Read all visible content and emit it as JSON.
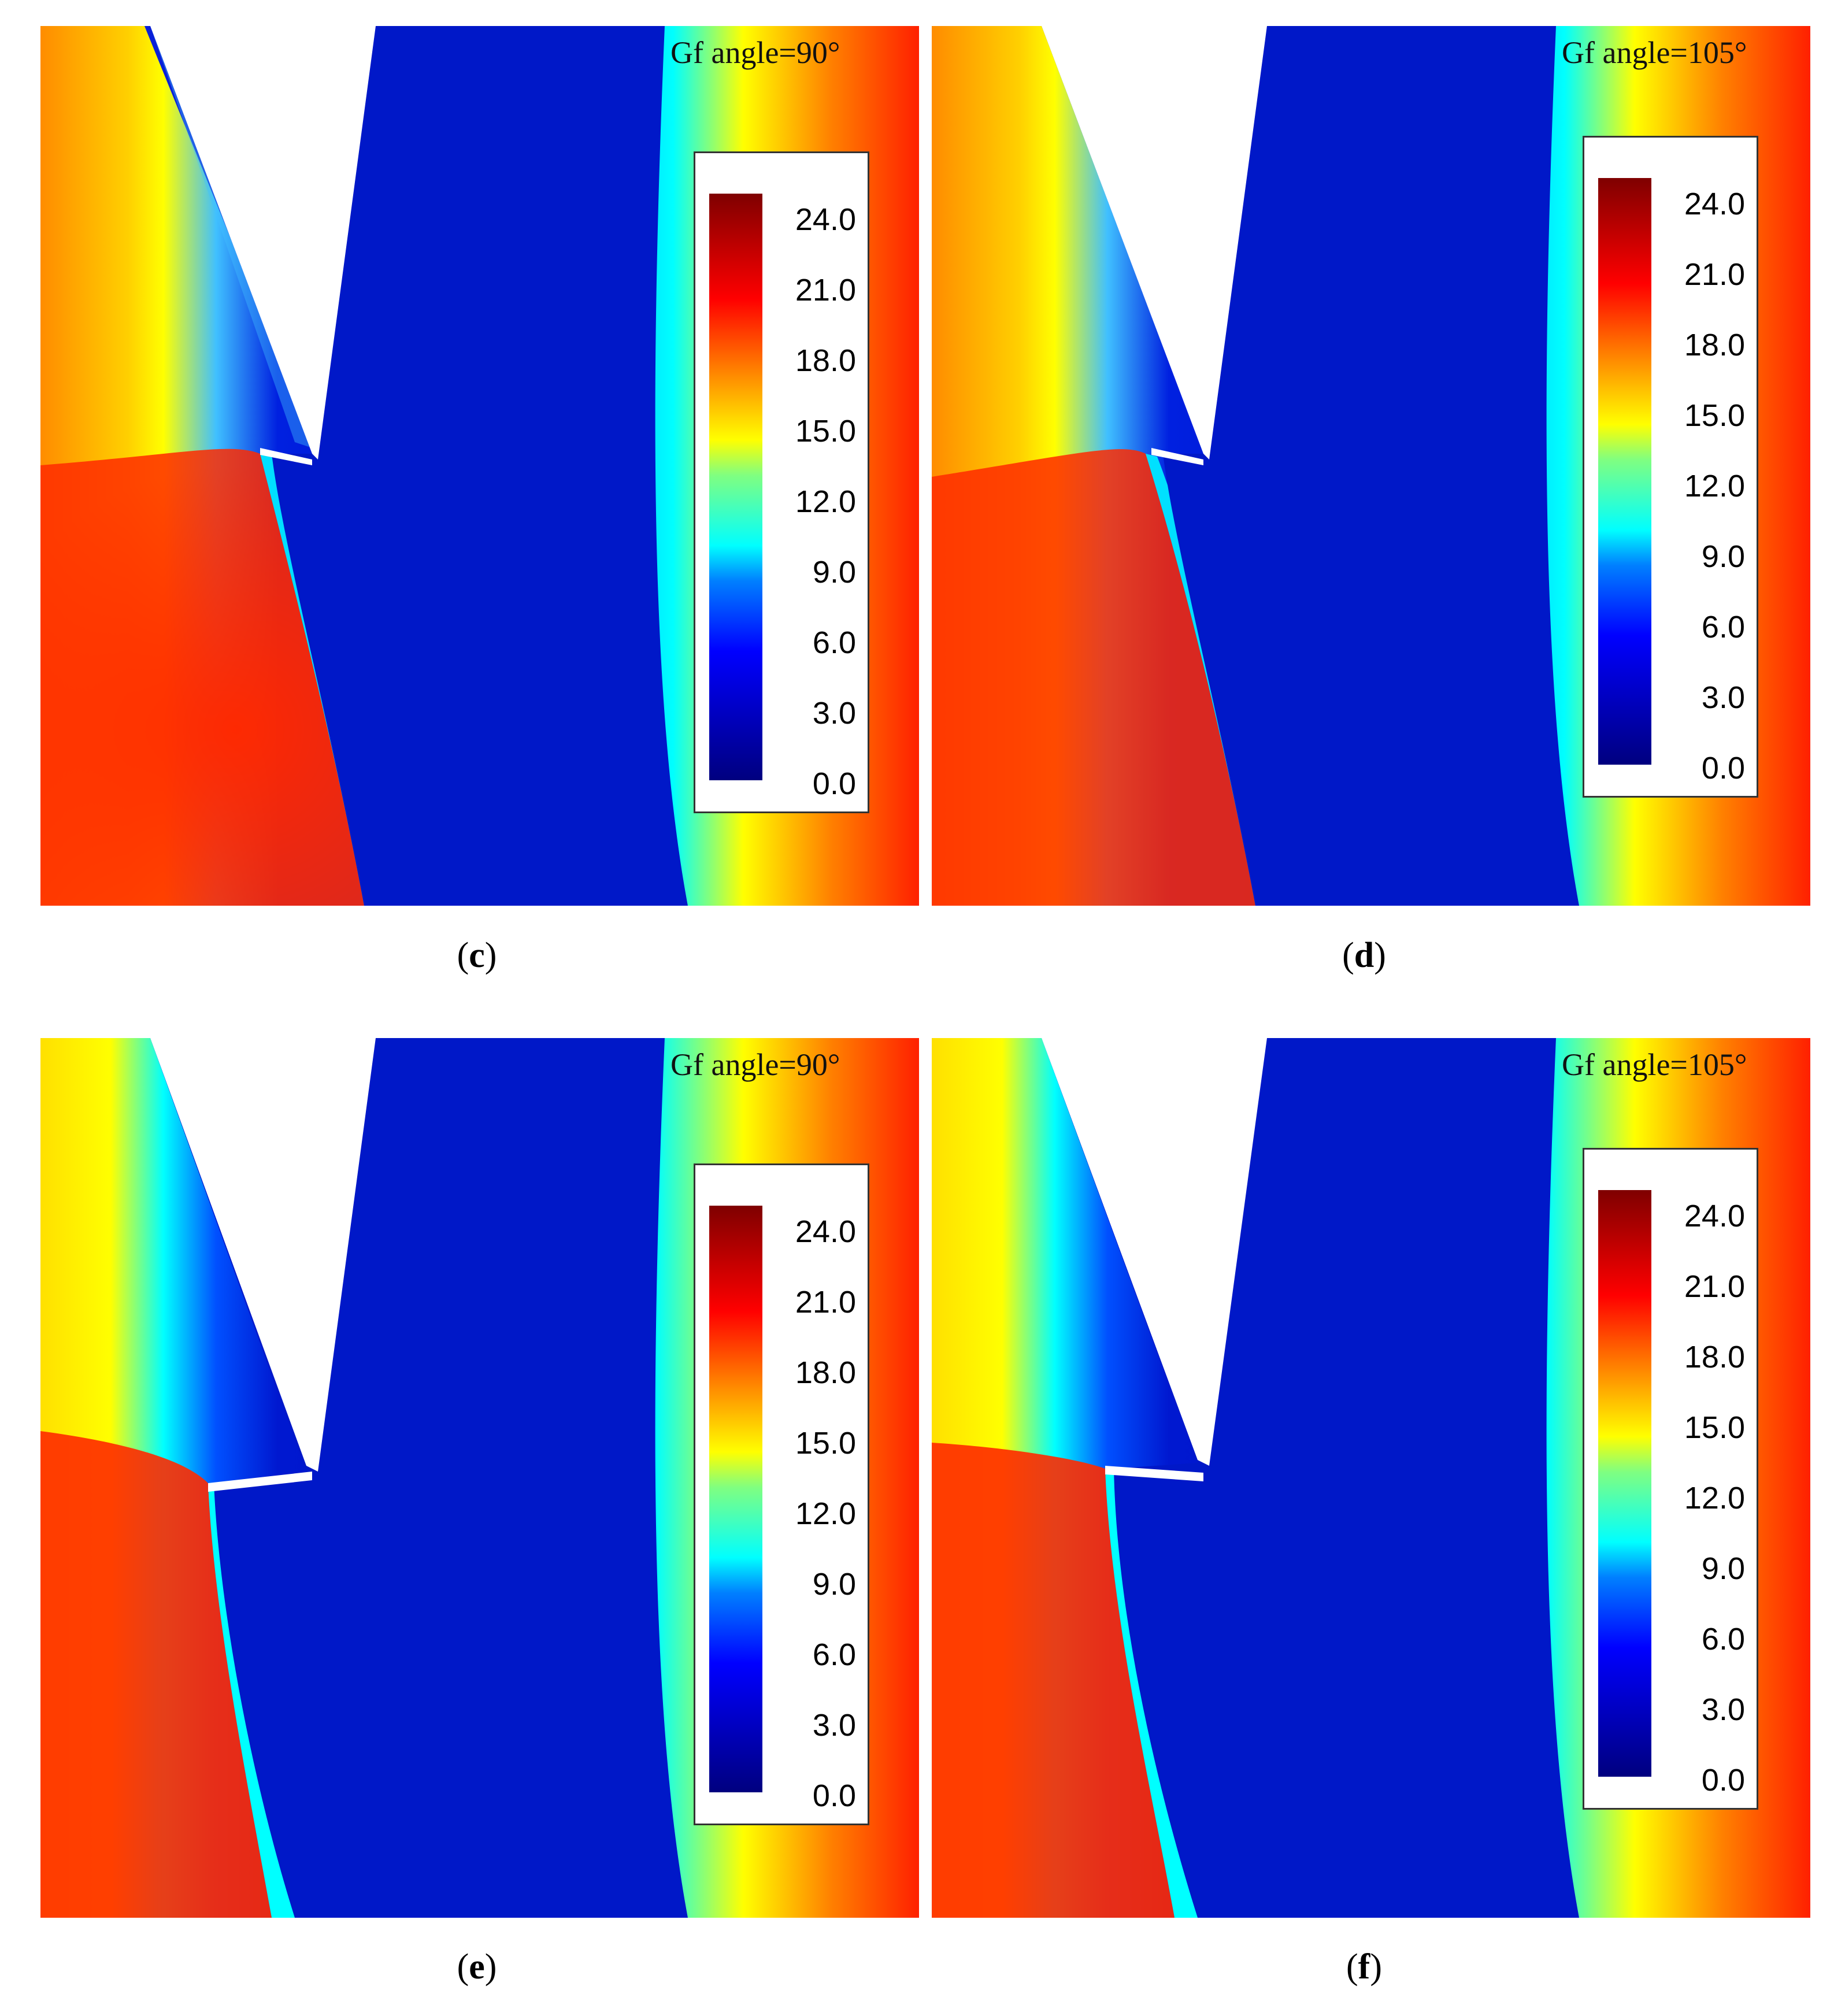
{
  "panels": [
    {
      "id": "c",
      "caption_letter": "c",
      "angle_label": "Gf angle=90°"
    },
    {
      "id": "d",
      "caption_letter": "d",
      "angle_label": "Gf angle=105°"
    },
    {
      "id": "e",
      "caption_letter": "e",
      "angle_label": "Gf angle=90°"
    },
    {
      "id": "f",
      "caption_letter": "f",
      "angle_label": "Gf angle=105°"
    }
  ],
  "colorbar": {
    "ticks": [
      "24.0",
      "21.0",
      "18.0",
      "15.0",
      "12.0",
      "9.0",
      "6.0",
      "3.0",
      "0.0"
    ],
    "min": 0.0,
    "max": 25.5,
    "colormap": [
      "#00007f",
      "#0000ff",
      "#0080ff",
      "#00ffff",
      "#80ff80",
      "#ffff00",
      "#ff8000",
      "#ff0000",
      "#7f0000"
    ]
  }
}
